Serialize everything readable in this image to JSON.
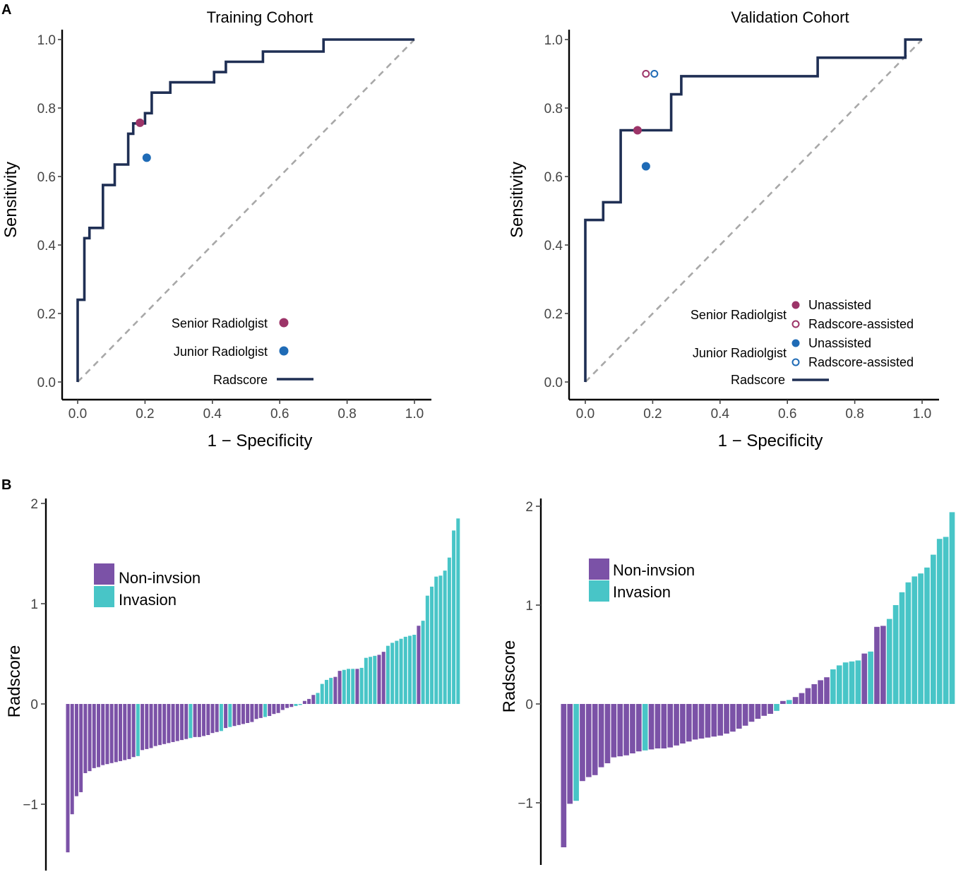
{
  "panel_labels": {
    "a": "A",
    "b": "B"
  },
  "colors": {
    "curve": "#1f2f54",
    "diag": "#a8a8a8",
    "senior": "#9c3468",
    "junior": "#1f6bb6",
    "noninv": "#7b52a7",
    "inv": "#48c5c7",
    "axis": "#000000",
    "tick": "#444444"
  },
  "chart_data": [
    {
      "id": "roc_training",
      "type": "line",
      "title": "Training Cohort",
      "xlabel": "1 − Specificity",
      "ylabel": "Sensitivity",
      "xlim": [
        0,
        1
      ],
      "ylim": [
        0,
        1
      ],
      "xticks": [
        "0.0",
        "0.2",
        "0.4",
        "0.6",
        "0.8",
        "1.0"
      ],
      "yticks": [
        "0.0",
        "0.2",
        "0.4",
        "0.6",
        "0.8",
        "1.0"
      ],
      "curve": [
        [
          0,
          0
        ],
        [
          0,
          0.24
        ],
        [
          0.02,
          0.24
        ],
        [
          0.02,
          0.42
        ],
        [
          0.035,
          0.42
        ],
        [
          0.035,
          0.45
        ],
        [
          0.075,
          0.45
        ],
        [
          0.075,
          0.575
        ],
        [
          0.11,
          0.575
        ],
        [
          0.11,
          0.635
        ],
        [
          0.15,
          0.635
        ],
        [
          0.15,
          0.725
        ],
        [
          0.165,
          0.725
        ],
        [
          0.165,
          0.755
        ],
        [
          0.2,
          0.755
        ],
        [
          0.2,
          0.785
        ],
        [
          0.22,
          0.785
        ],
        [
          0.22,
          0.845
        ],
        [
          0.275,
          0.845
        ],
        [
          0.275,
          0.875
        ],
        [
          0.405,
          0.875
        ],
        [
          0.405,
          0.905
        ],
        [
          0.44,
          0.905
        ],
        [
          0.44,
          0.935
        ],
        [
          0.55,
          0.935
        ],
        [
          0.55,
          0.965
        ],
        [
          0.73,
          0.965
        ],
        [
          0.73,
          1.0
        ],
        [
          1.0,
          1.0
        ]
      ],
      "points": [
        {
          "name": "Senior Radiolgist",
          "x": 0.185,
          "y": 0.757,
          "color": "senior",
          "filled": true
        },
        {
          "name": "Junior Radiolgist",
          "x": 0.205,
          "y": 0.655,
          "color": "junior",
          "filled": true
        }
      ],
      "legend": [
        {
          "label": "Senior Radiolgist",
          "kind": "dot",
          "color": "senior"
        },
        {
          "label": "Junior Radiolgist",
          "kind": "dot",
          "color": "junior"
        },
        {
          "label": "Radscore",
          "kind": "line",
          "color": "curve"
        }
      ]
    },
    {
      "id": "roc_validation",
      "type": "line",
      "title": "Validation Cohort",
      "xlabel": "1 − Specificity",
      "ylabel": "Sensitivity",
      "xlim": [
        0,
        1
      ],
      "ylim": [
        0,
        1
      ],
      "xticks": [
        "0.0",
        "0.2",
        "0.4",
        "0.6",
        "0.8",
        "1.0"
      ],
      "yticks": [
        "0.0",
        "0.2",
        "0.4",
        "0.6",
        "0.8",
        "1.0"
      ],
      "curve": [
        [
          0,
          0
        ],
        [
          0,
          0.473
        ],
        [
          0.053,
          0.473
        ],
        [
          0.053,
          0.525
        ],
        [
          0.105,
          0.525
        ],
        [
          0.105,
          0.735
        ],
        [
          0.255,
          0.735
        ],
        [
          0.255,
          0.84
        ],
        [
          0.285,
          0.84
        ],
        [
          0.285,
          0.893
        ],
        [
          0.69,
          0.893
        ],
        [
          0.69,
          0.947
        ],
        [
          0.95,
          0.947
        ],
        [
          0.95,
          1.0
        ],
        [
          1.0,
          1.0
        ]
      ],
      "points": [
        {
          "name": "Senior Radiolgist Unassisted",
          "x": 0.155,
          "y": 0.735,
          "color": "senior",
          "filled": true
        },
        {
          "name": "Senior Radiolgist Radscore-assisted",
          "x": 0.18,
          "y": 0.9,
          "color": "senior",
          "filled": false
        },
        {
          "name": "Junior Radiolgist Unassisted",
          "x": 0.18,
          "y": 0.63,
          "color": "junior",
          "filled": true
        },
        {
          "name": "Junior Radiolgist Radscore-assisted",
          "x": 0.205,
          "y": 0.9,
          "color": "junior",
          "filled": false
        }
      ],
      "legend_groups": [
        {
          "label": "Senior Radiolgist",
          "items": [
            {
              "label": "Unassisted",
              "color": "senior",
              "filled": true
            },
            {
              "label": "Radscore-assisted",
              "color": "senior",
              "filled": false
            }
          ]
        },
        {
          "label": "Junior Radiolgist",
          "items": [
            {
              "label": "Unassisted",
              "color": "junior",
              "filled": true
            },
            {
              "label": "Radscore-assisted",
              "color": "junior",
              "filled": false
            }
          ]
        }
      ],
      "legend_line": {
        "label": "Radscore",
        "color": "curve"
      }
    },
    {
      "id": "waterfall_training",
      "type": "bar",
      "ylabel": "Radscore",
      "ylim": [
        -1.6,
        2.05
      ],
      "yticks": [
        -1,
        0,
        1,
        2
      ],
      "ytick_labels": [
        "−1",
        "0",
        "1",
        "2"
      ],
      "legend": [
        {
          "label": "Non-invsion",
          "color": "noninv"
        },
        {
          "label": "Invasion",
          "color": "inv"
        }
      ],
      "values": [
        -1.48,
        -1.1,
        -0.92,
        -0.88,
        -0.69,
        -0.67,
        -0.64,
        -0.63,
        -0.61,
        -0.6,
        -0.59,
        -0.58,
        -0.57,
        -0.56,
        -0.55,
        -0.53,
        -0.52,
        -0.46,
        -0.45,
        -0.44,
        -0.42,
        -0.41,
        -0.4,
        -0.39,
        -0.38,
        -0.37,
        -0.36,
        -0.35,
        -0.34,
        -0.33,
        -0.33,
        -0.32,
        -0.31,
        -0.29,
        -0.28,
        -0.27,
        -0.24,
        -0.23,
        -0.22,
        -0.21,
        -0.2,
        -0.19,
        -0.18,
        -0.15,
        -0.14,
        -0.13,
        -0.12,
        -0.1,
        -0.09,
        -0.06,
        -0.04,
        -0.03,
        -0.02,
        -0.01,
        0.03,
        0.05,
        0.09,
        0.11,
        0.2,
        0.24,
        0.26,
        0.27,
        0.33,
        0.34,
        0.35,
        0.35,
        0.35,
        0.36,
        0.46,
        0.47,
        0.48,
        0.49,
        0.52,
        0.58,
        0.61,
        0.63,
        0.65,
        0.67,
        0.68,
        0.69,
        0.78,
        0.83,
        1.08,
        1.17,
        1.27,
        1.28,
        1.33,
        1.46,
        1.73,
        1.85
      ],
      "classes": [
        "N",
        "N",
        "N",
        "N",
        "N",
        "N",
        "N",
        "N",
        "N",
        "N",
        "N",
        "N",
        "N",
        "N",
        "N",
        "N",
        "I",
        "N",
        "N",
        "N",
        "N",
        "N",
        "N",
        "N",
        "N",
        "N",
        "N",
        "N",
        "I",
        "N",
        "N",
        "N",
        "N",
        "N",
        "N",
        "I",
        "N",
        "I",
        "N",
        "N",
        "N",
        "N",
        "N",
        "N",
        "N",
        "I",
        "N",
        "N",
        "N",
        "N",
        "N",
        "N",
        "I",
        "I",
        "N",
        "N",
        "N",
        "I",
        "I",
        "I",
        "I",
        "N",
        "N",
        "I",
        "I",
        "I",
        "N",
        "I",
        "I",
        "I",
        "I",
        "N",
        "N",
        "I",
        "I",
        "I",
        "I",
        "I",
        "I",
        "I",
        "N",
        "I",
        "I",
        "I",
        "I",
        "I",
        "I",
        "I",
        "I",
        "I"
      ]
    },
    {
      "id": "waterfall_validation",
      "type": "bar",
      "ylabel": "Radscore",
      "ylim": [
        -1.6,
        2.05
      ],
      "yticks": [
        -1,
        0,
        1,
        2
      ],
      "ytick_labels": [
        "−1",
        "0",
        "1",
        "2"
      ],
      "legend": [
        {
          "label": "Non-invsion",
          "color": "noninv"
        },
        {
          "label": "Invasion",
          "color": "inv"
        }
      ],
      "values": [
        -1.45,
        -1.01,
        -0.98,
        -0.78,
        -0.74,
        -0.72,
        -0.64,
        -0.6,
        -0.54,
        -0.53,
        -0.52,
        -0.5,
        -0.48,
        -0.47,
        -0.46,
        -0.45,
        -0.45,
        -0.44,
        -0.42,
        -0.4,
        -0.38,
        -0.36,
        -0.35,
        -0.34,
        -0.33,
        -0.32,
        -0.3,
        -0.28,
        -0.25,
        -0.22,
        -0.18,
        -0.15,
        -0.12,
        -0.1,
        -0.07,
        0.03,
        0.04,
        0.07,
        0.11,
        0.16,
        0.2,
        0.24,
        0.27,
        0.35,
        0.39,
        0.42,
        0.43,
        0.44,
        0.51,
        0.53,
        0.78,
        0.79,
        0.86,
        1.0,
        1.13,
        1.23,
        1.29,
        1.32,
        1.38,
        1.51,
        1.67,
        1.69,
        1.94
      ],
      "classes": [
        "N",
        "N",
        "I",
        "N",
        "N",
        "N",
        "N",
        "N",
        "N",
        "N",
        "N",
        "N",
        "N",
        "I",
        "N",
        "N",
        "N",
        "N",
        "N",
        "N",
        "N",
        "N",
        "N",
        "N",
        "N",
        "N",
        "N",
        "N",
        "N",
        "N",
        "N",
        "N",
        "N",
        "N",
        "I",
        "N",
        "I",
        "N",
        "N",
        "N",
        "N",
        "N",
        "N",
        "I",
        "I",
        "I",
        "I",
        "I",
        "N",
        "I",
        "N",
        "N",
        "I",
        "I",
        "I",
        "I",
        "I",
        "I",
        "I",
        "I",
        "I",
        "I",
        "I"
      ]
    }
  ]
}
